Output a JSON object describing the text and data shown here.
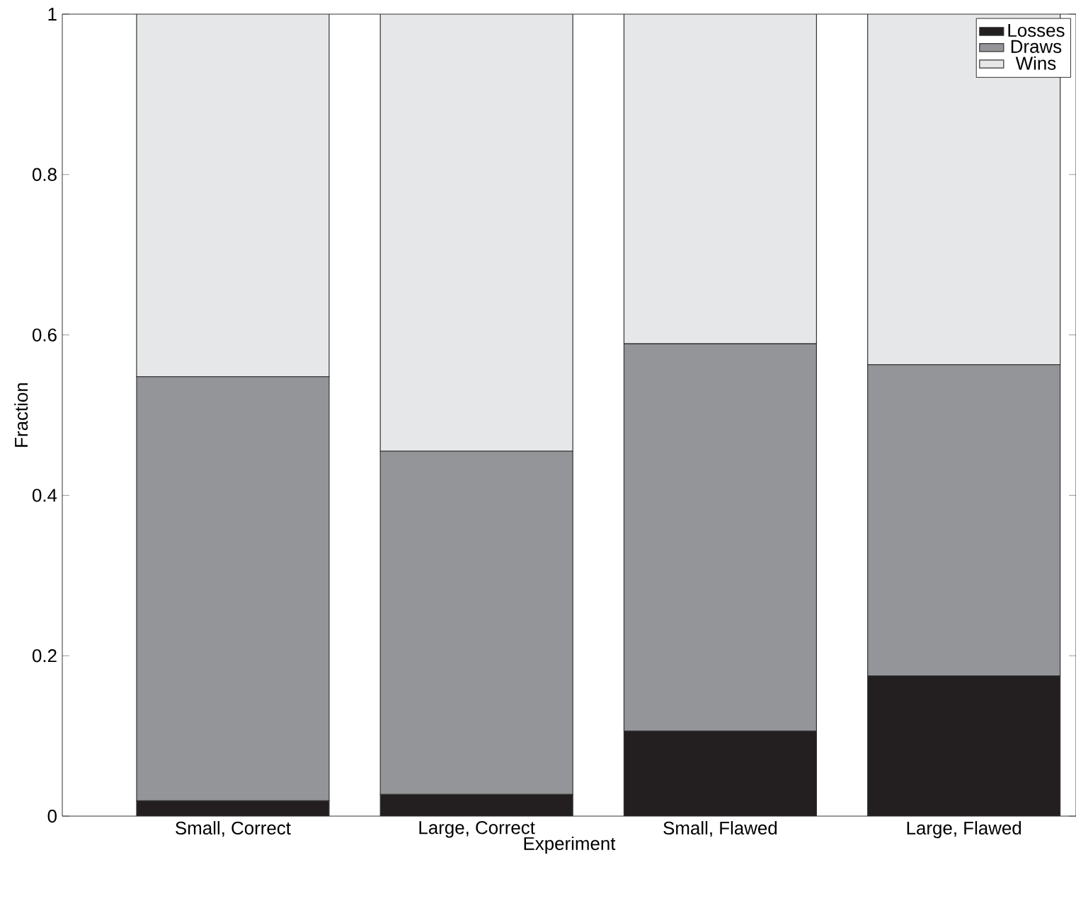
{
  "chart_data": {
    "type": "bar",
    "stacked": true,
    "xlabel": "Experiment",
    "ylabel": "Fraction",
    "categories": [
      "Small, Correct",
      "Large, Correct",
      "Small, Flawed",
      "Large, Flawed"
    ],
    "series": [
      {
        "name": "Losses",
        "color": "#231f20",
        "values": [
          0.019,
          0.027,
          0.106,
          0.175
        ]
      },
      {
        "name": "Draws",
        "color": "#939598",
        "values": [
          0.529,
          0.428,
          0.483,
          0.388
        ]
      },
      {
        "name": "Wins",
        "color": "#e6e7e8",
        "values": [
          0.452,
          0.545,
          0.411,
          0.437
        ]
      }
    ],
    "ylim": [
      0,
      1
    ],
    "yticks": [
      0,
      0.2,
      0.4,
      0.6,
      0.8,
      1
    ],
    "grid": false,
    "legend": "top right"
  }
}
